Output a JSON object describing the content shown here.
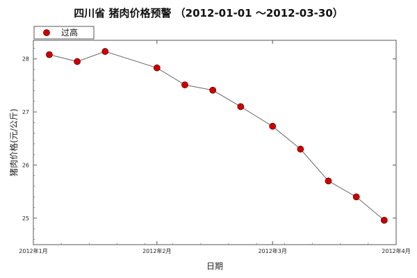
{
  "chart_data": {
    "type": "line",
    "title": "四川省 猪肉价格预警 （2012-01-01 ～2012-03-30）",
    "xlabel": "日期",
    "ylabel": "猪肉价格(元/公斤)",
    "x_tick_labels": [
      "2012年1月",
      "2012年2月",
      "2012年3月",
      "2012年4月"
    ],
    "x_tick_dates": [
      "2012-01-01",
      "2012-02-01",
      "2012-03-01",
      "2012-04-01"
    ],
    "xlim": [
      "2012-01-01",
      "2012-04-01"
    ],
    "y_ticks": [
      25,
      26,
      27,
      28
    ],
    "ylim": [
      24.5,
      28.35
    ],
    "legend": "top-left",
    "grid": false,
    "series": [
      {
        "name": "过高",
        "color": "#cc0000",
        "line_color": "#666666",
        "x": [
          "2012-01-05",
          "2012-01-12",
          "2012-01-19",
          "2012-02-01",
          "2012-02-08",
          "2012-02-15",
          "2012-02-22",
          "2012-03-01",
          "2012-03-08",
          "2012-03-15",
          "2012-03-22",
          "2012-03-29"
        ],
        "values": [
          28.08,
          27.95,
          28.14,
          27.83,
          27.51,
          27.41,
          27.1,
          26.73,
          26.3,
          25.7,
          25.4,
          24.96
        ]
      }
    ]
  }
}
